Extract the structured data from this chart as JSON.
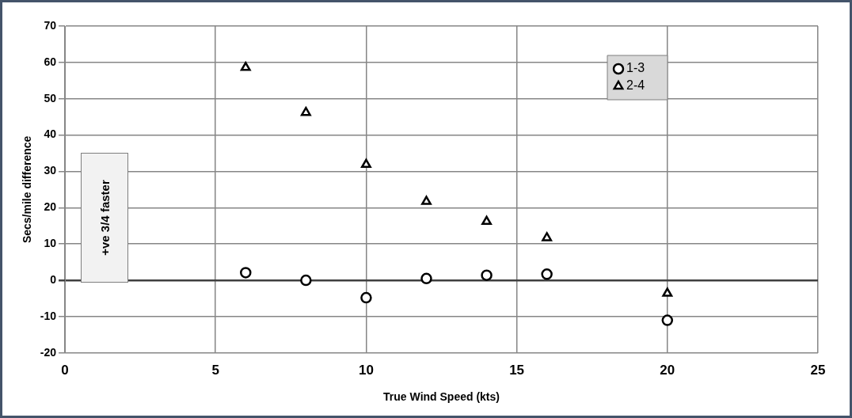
{
  "chart_data": {
    "type": "scatter",
    "xlabel": "True Wind Speed (kts)",
    "ylabel": "Secs/mile difference",
    "x": [
      6,
      8,
      10,
      12,
      14,
      16,
      20
    ],
    "series": [
      {
        "name": "1-3",
        "color": "#000000",
        "marker": "circle",
        "values": [
          2.1,
          0,
          -4.8,
          0.5,
          1.4,
          1.7,
          -11
        ]
      },
      {
        "name": "2-4",
        "color": "#000000",
        "marker": "triangle",
        "values": [
          58.6,
          46.2,
          31.9,
          21.7,
          16.2,
          11.7,
          -3.6
        ]
      }
    ],
    "xlim": [
      0,
      25
    ],
    "xticks": [
      0,
      5,
      10,
      15,
      20,
      25
    ],
    "ylim": [
      -20,
      70
    ],
    "yticks": [
      -20,
      -10,
      0,
      10,
      20,
      30,
      40,
      50,
      60,
      70
    ],
    "grid": true,
    "legend": "top right",
    "annotations": [
      "+ve 3/4 faster"
    ]
  }
}
